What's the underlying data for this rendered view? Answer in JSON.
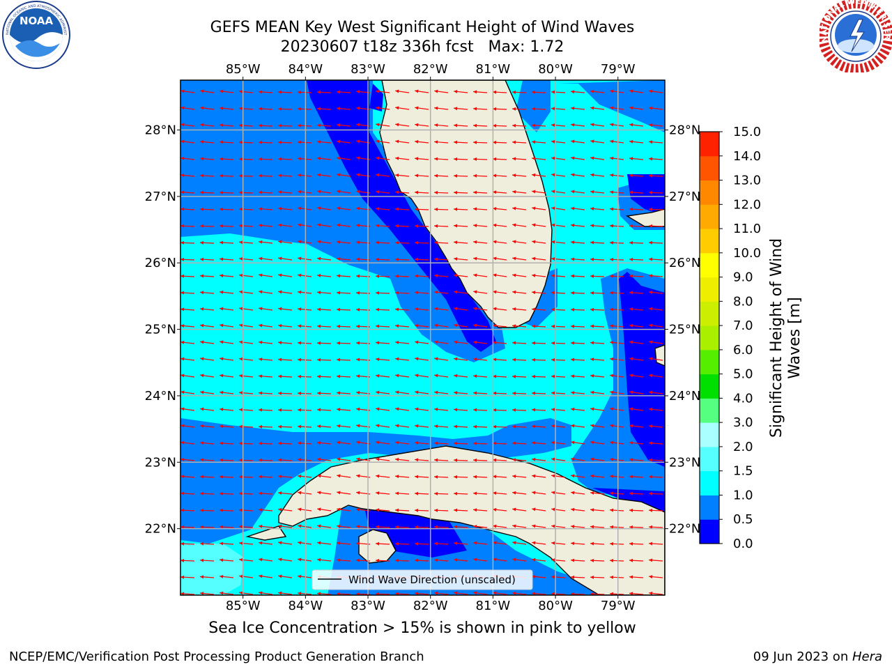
{
  "title": {
    "line1": "GEFS MEAN Key West Significant Height of Wind Waves",
    "line2": "20230607 t18z 336h fcst   Max: 1.72"
  },
  "logos": {
    "noaa": {
      "text": "NOAA",
      "ring_text": "NATIONAL OCEANIC AND ATMOSPHERIC ADMINISTRATION · U.S. DEPARTMENT OF COMMERCE"
    },
    "nws": {
      "ring_text": "NATIONAL WEATHER SERVICE"
    }
  },
  "map": {
    "lon_range": [
      -86.0,
      -78.25
    ],
    "lat_range": [
      21.0,
      28.75
    ],
    "lon_ticks": [
      "85°W",
      "84°W",
      "83°W",
      "82°W",
      "81°W",
      "80°W",
      "79°W"
    ],
    "lat_ticks": [
      "28°N",
      "27°N",
      "26°N",
      "25°N",
      "24°N",
      "23°N",
      "22°N"
    ],
    "gridlines": true,
    "land_color": "#efeedd",
    "arrow_color": "#ff0000",
    "legend_label": "Wind Wave Direction (unscaled)",
    "legend_placement": "lower-center"
  },
  "colorbar": {
    "title": "Significant Height of Wind Waves [m]",
    "ticks": [
      "0.0",
      "0.5",
      "1.0",
      "1.5",
      "2.0",
      "3.0",
      "4.0",
      "5.0",
      "6.0",
      "7.0",
      "8.0",
      "9.0",
      "10.0",
      "11.0",
      "12.0",
      "13.0",
      "14.0",
      "15.0"
    ],
    "colors": [
      "#0000ff",
      "#0080ff",
      "#00ffff",
      "#55ffff",
      "#aaffff",
      "#55ff80",
      "#00e000",
      "#55ee00",
      "#aaee00",
      "#ccee00",
      "#eeee00",
      "#ffff00",
      "#ffcc00",
      "#ffaa00",
      "#ff8800",
      "#ff5500",
      "#ff2200"
    ]
  },
  "note": "Sea Ice Concentration > 15% is shown in pink to yellow",
  "footer": {
    "left": "NCEP/EMC/Verification Post Processing Product Generation Branch",
    "right_date": "09 Jun 2023 on ",
    "right_machine": "Hera"
  }
}
